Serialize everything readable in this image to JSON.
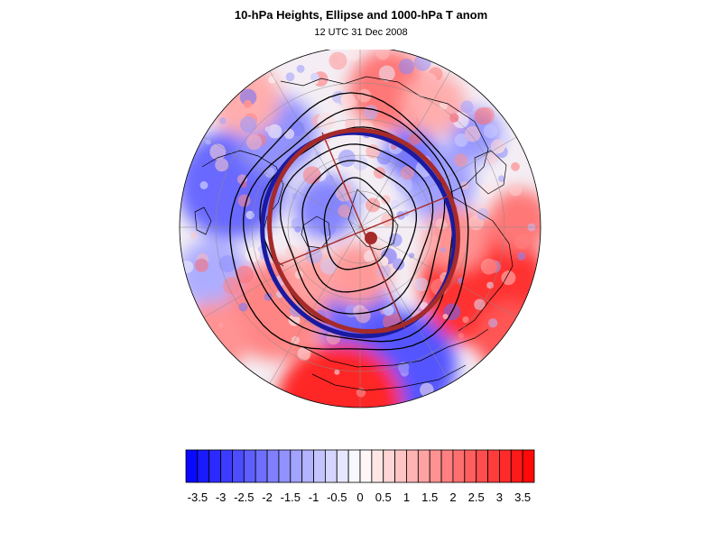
{
  "title": "10-hPa Heights, Ellipse and 1000-hPa T anom",
  "subtitle": "12 UTC 31 Dec 2008",
  "colorbar": {
    "labels": [
      "-3.5",
      "-3",
      "-2.5",
      "-2",
      "-1.5",
      "-1",
      "-0.5",
      "0",
      "0.5",
      "1",
      "1.5",
      "2",
      "2.5",
      "3",
      "3.5"
    ],
    "min": -3.75,
    "max": 3.75,
    "step": 0.25,
    "cold_color": "#0000ff",
    "warm_color": "#ff0000",
    "neutral_color": "#ffffff"
  },
  "colors": {
    "ellipse": "#a52a2a",
    "ellipse_shadow": "#1a1aa0",
    "height_contours": "#000000",
    "coastlines": "#000000",
    "grid": "#888888"
  }
}
